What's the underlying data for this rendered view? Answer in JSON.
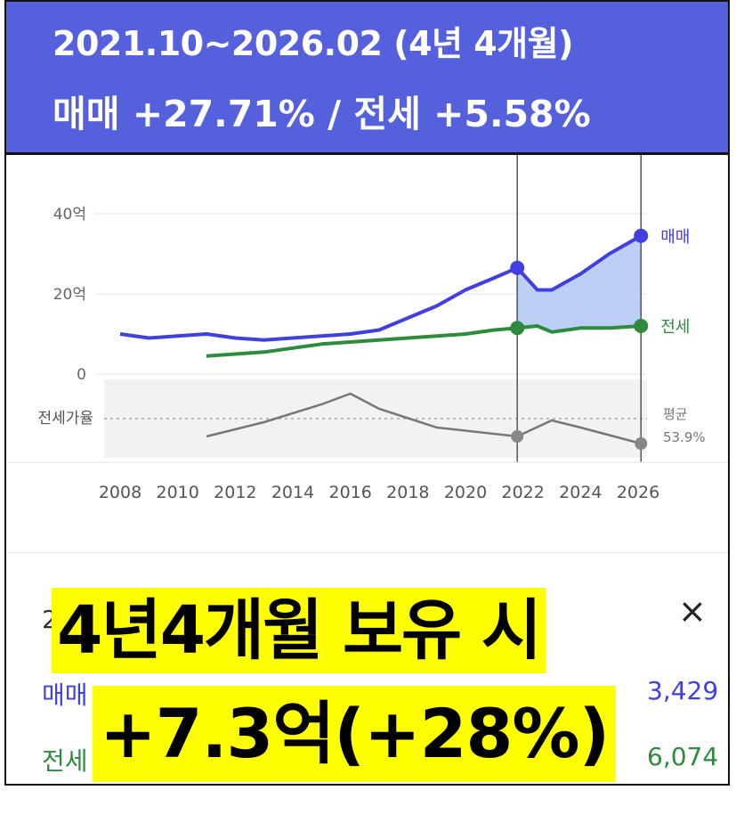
{
  "header": {
    "period": "2021.10~2026.02 (4년 4개월)",
    "summary": "매매 +27.71%  /  전세 +5.58%"
  },
  "chart_data": {
    "type": "line",
    "x_ticks": [
      "2008",
      "2010",
      "2012",
      "2014",
      "2016",
      "2018",
      "2020",
      "2022",
      "2024",
      "2026"
    ],
    "y_ticks": [
      "40억",
      "20억",
      "0"
    ],
    "ylim": [
      0,
      45
    ],
    "series": [
      {
        "name": "매매",
        "color": "#4040e0",
        "x": [
          2008,
          2009,
          2010,
          2011,
          2012,
          2013,
          2014,
          2015,
          2016,
          2017,
          2018,
          2019,
          2020,
          2021,
          2021.8,
          2022.5,
          2023,
          2024,
          2025,
          2026.1
        ],
        "values": [
          10,
          9,
          9.5,
          10,
          9,
          8.5,
          9,
          9.5,
          10,
          11,
          14,
          17,
          21,
          24,
          26.5,
          21,
          21,
          25,
          30,
          34.5
        ]
      },
      {
        "name": "전세",
        "color": "#2e8b3e",
        "x": [
          2011,
          2012,
          2013,
          2014,
          2015,
          2016,
          2017,
          2018,
          2019,
          2020,
          2021,
          2021.8,
          2022.5,
          2023,
          2024,
          2025,
          2026.1
        ],
        "values": [
          4.5,
          5,
          5.5,
          6.5,
          7.5,
          8,
          8.5,
          9,
          9.5,
          10,
          11,
          11.5,
          12,
          10.5,
          11.5,
          11.5,
          12
        ]
      }
    ],
    "secondary_series": {
      "name": "전세가율",
      "avg_label": "평균",
      "avg_value": "53.9%"
    },
    "highlight": {
      "from": 2021.8,
      "to": 2026.1
    }
  },
  "panel": {
    "row1_label": "2",
    "row2_label": "매매",
    "row2_value": "3,429",
    "row3_label": "전세",
    "row3_value": "6,074",
    "close_glyph": "×"
  },
  "overlay": {
    "line1": "4년4개월 보유 시",
    "line2": "+7.3억(+28%)"
  },
  "colors": {
    "header_bg": "#5560dc",
    "sale": "#4040e0",
    "jeonse": "#2e8b3e",
    "highlight": "#b0c8f5",
    "overlay_bg": "#ffff00"
  }
}
